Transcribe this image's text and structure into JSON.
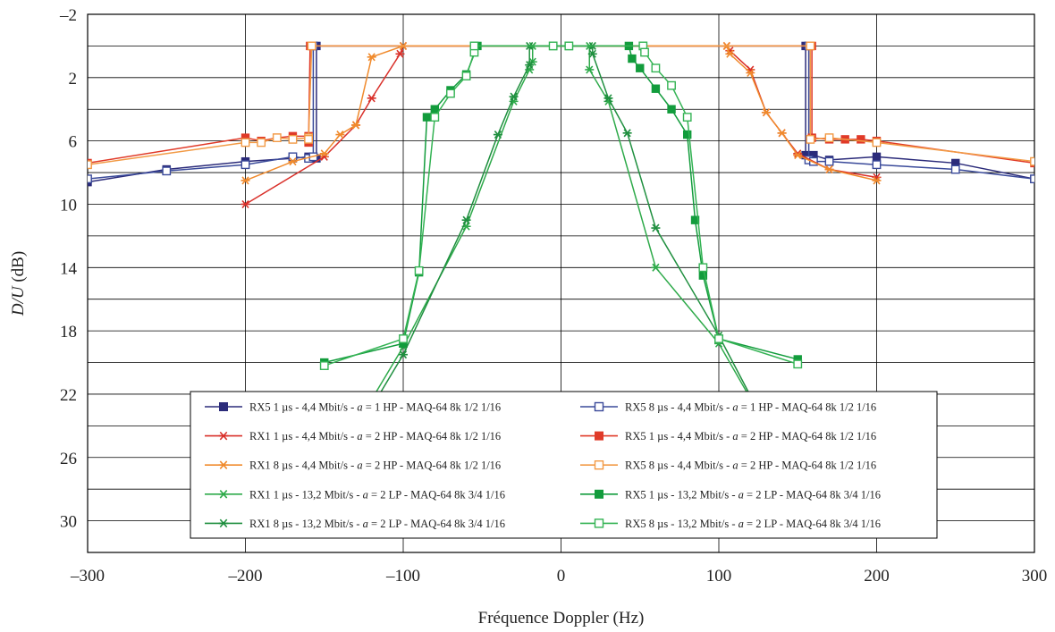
{
  "chart_data": {
    "type": "line",
    "title": "",
    "xlabel": "Fréquence Doppler (Hz)",
    "ylabel_parts": [
      {
        "text": "D/U",
        "italic": true
      },
      {
        "text": " (dB)",
        "italic": false
      }
    ],
    "xlim": [
      -300,
      300
    ],
    "ylim": [
      -2,
      32
    ],
    "y_inverted": true,
    "x_ticks": [
      -300,
      -200,
      -100,
      0,
      100,
      200,
      300
    ],
    "x_tick_labels": [
      "–300",
      "–200",
      "–100",
      "0",
      "100",
      "200",
      "300"
    ],
    "y_ticks": [
      -2,
      2,
      6,
      10,
      14,
      18,
      22,
      26,
      30
    ],
    "y_tick_labels": [
      "–2",
      "2",
      "6",
      "10",
      "14",
      "18",
      "22",
      "26",
      "30"
    ],
    "grid": true,
    "legend_position": "bottom-center",
    "series": [
      {
        "name": "RX5 1 µs - 4,4 Mbit/s - a = 1 HP - MAQ-64 8k 1/2 1/16",
        "legend_parts": [
          {
            "t": "RX5 1 µs - 4,4 Mbit/s - "
          },
          {
            "t": "a",
            "i": true
          },
          {
            "t": " = 1 HP - MAQ-64 8k 1/2 1/16"
          }
        ],
        "color": "#2b2b7a",
        "marker": "square-filled",
        "points": [
          [
            -300,
            8.6
          ],
          [
            -250,
            7.8
          ],
          [
            -200,
            7.3
          ],
          [
            -170,
            7.1
          ],
          [
            -160,
            7.0
          ],
          [
            -155,
            7.1
          ],
          [
            -155,
            0
          ],
          [
            155,
            0
          ],
          [
            155,
            6.9
          ],
          [
            160,
            6.9
          ],
          [
            170,
            7.2
          ],
          [
            200,
            7.0
          ],
          [
            250,
            7.4
          ],
          [
            300,
            8.4
          ]
        ]
      },
      {
        "name": "RX5 8 µs - 4,4 Mbit/s - a = 1 HP - MAQ-64 8k 1/2 1/16",
        "legend_parts": [
          {
            "t": "RX5 8 µs - 4,4 Mbit/s - "
          },
          {
            "t": "a",
            "i": true
          },
          {
            "t": " = 1 HP - MAQ-64 8k 1/2 1/16"
          }
        ],
        "color": "#3a4a9a",
        "marker": "square-open",
        "points": [
          [
            -300,
            8.4
          ],
          [
            -250,
            7.9
          ],
          [
            -200,
            7.5
          ],
          [
            -170,
            7.0
          ],
          [
            -160,
            7.1
          ],
          [
            -157,
            7.0
          ],
          [
            -157,
            0
          ],
          [
            157,
            0
          ],
          [
            157,
            7.2
          ],
          [
            160,
            7.3
          ],
          [
            170,
            7.3
          ],
          [
            200,
            7.5
          ],
          [
            250,
            7.8
          ],
          [
            300,
            8.4
          ]
        ]
      },
      {
        "name": "RX1 1 µs - 4,4 Mbit/s - a = 2 HP - MAQ-64 8k 1/2 1/16",
        "legend_parts": [
          {
            "t": "RX1 1 µs - 4,4 Mbit/s - "
          },
          {
            "t": "a",
            "i": true
          },
          {
            "t": " = 2 HP - MAQ-64 8k 1/2 1/16"
          }
        ],
        "color": "#d9302a",
        "marker": "star",
        "points": [
          [
            -200,
            10.0
          ],
          [
            -150,
            7.0
          ],
          [
            -130,
            5.0
          ],
          [
            -120,
            3.3
          ],
          [
            -102,
            0.5
          ],
          [
            -100,
            0
          ],
          [
            105,
            0
          ],
          [
            107,
            0.3
          ],
          [
            120,
            1.5
          ],
          [
            130,
            4.2
          ],
          [
            140,
            5.5
          ],
          [
            150,
            6.8
          ],
          [
            170,
            7.8
          ],
          [
            200,
            8.3
          ]
        ]
      },
      {
        "name": "RX5 1 µs - 4,4 Mbit/s - a = 2 HP - MAQ-64 8k 1/2 1/16",
        "legend_parts": [
          {
            "t": "RX5 1 µs - 4,4 Mbit/s - "
          },
          {
            "t": "a",
            "i": true
          },
          {
            "t": " = 2 HP - MAQ-64 8k 1/2 1/16"
          }
        ],
        "color": "#e03a28",
        "marker": "square-filled",
        "points": [
          [
            -300,
            7.4
          ],
          [
            -200,
            5.8
          ],
          [
            -190,
            6.0
          ],
          [
            -180,
            5.8
          ],
          [
            -170,
            5.7
          ],
          [
            -160,
            5.7
          ],
          [
            -160,
            6.1
          ],
          [
            -159,
            0
          ],
          [
            159,
            0
          ],
          [
            159,
            5.8
          ],
          [
            170,
            5.9
          ],
          [
            180,
            5.9
          ],
          [
            190,
            5.9
          ],
          [
            200,
            6.0
          ],
          [
            300,
            7.4
          ]
        ]
      },
      {
        "name": "RX1 8 µs - 4,4 Mbit/s - a = 2 HP - MAQ-64 8k 1/2 1/16",
        "legend_parts": [
          {
            "t": "RX1 8 µs - 4,4 Mbit/s - "
          },
          {
            "t": "a",
            "i": true
          },
          {
            "t": " = 2 HP - MAQ-64 8k 1/2 1/16"
          }
        ],
        "color": "#f08a2c",
        "marker": "star",
        "points": [
          [
            -200,
            8.5
          ],
          [
            -170,
            7.3
          ],
          [
            -150,
            6.8
          ],
          [
            -140,
            5.6
          ],
          [
            -130,
            5.0
          ],
          [
            -120,
            0.7
          ],
          [
            -100,
            0
          ],
          [
            105,
            0
          ],
          [
            107,
            0.5
          ],
          [
            120,
            1.7
          ],
          [
            130,
            4.2
          ],
          [
            140,
            5.5
          ],
          [
            150,
            6.9
          ],
          [
            170,
            7.8
          ],
          [
            200,
            8.5
          ]
        ]
      },
      {
        "name": "RX5 8 µs - 4,4 Mbit/s - a = 2 HP - MAQ-64 8k 1/2 1/16",
        "legend_parts": [
          {
            "t": "RX5 8 µs - 4,4 Mbit/s - "
          },
          {
            "t": "a",
            "i": true
          },
          {
            "t": " = 2 HP - MAQ-64 8k 1/2 1/16"
          }
        ],
        "color": "#f29a45",
        "marker": "square-open",
        "points": [
          [
            -300,
            7.5
          ],
          [
            -200,
            6.1
          ],
          [
            -190,
            6.1
          ],
          [
            -180,
            5.8
          ],
          [
            -170,
            5.9
          ],
          [
            -160,
            5.8
          ],
          [
            -160,
            5.9
          ],
          [
            -158,
            0
          ],
          [
            158,
            0
          ],
          [
            158,
            5.9
          ],
          [
            170,
            5.8
          ],
          [
            200,
            6.1
          ],
          [
            300,
            7.3
          ]
        ]
      },
      {
        "name": "RX1 1 µs - 13,2 Mbit/s - a = 2 LP - MAQ-64 8k 3/4 1/16",
        "legend_parts": [
          {
            "t": "RX1 1 µs - 13,2 Mbit/s - "
          },
          {
            "t": "a",
            "i": true
          },
          {
            "t": " = 2 LP - MAQ-64 8k 3/4 1/16"
          }
        ],
        "color": "#2eaa4a",
        "marker": "star",
        "points": [
          [
            -130,
            24.0
          ],
          [
            -100,
            19.0
          ],
          [
            -60,
            11.4
          ],
          [
            -30,
            3.5
          ],
          [
            -20,
            1.5
          ],
          [
            -18,
            1.0
          ],
          [
            -18,
            0
          ],
          [
            18,
            0
          ],
          [
            18,
            1.5
          ],
          [
            30,
            3.5
          ],
          [
            60,
            14.0
          ],
          [
            100,
            18.8
          ],
          [
            130,
            24.0
          ]
        ]
      },
      {
        "name": "RX5 1 µs - 13,2 Mbit/s - a = 2 LP - MAQ-64 8k 3/4 1/16",
        "legend_parts": [
          {
            "t": "RX5 1 µs - 13,2 Mbit/s - "
          },
          {
            "t": "a",
            "i": true
          },
          {
            "t": " = 2 LP - MAQ-64 8k 3/4 1/16"
          }
        ],
        "color": "#129c3c",
        "marker": "square-filled",
        "points": [
          [
            -150,
            20.0
          ],
          [
            -100,
            18.8
          ],
          [
            -90,
            14.3
          ],
          [
            -85,
            4.5
          ],
          [
            -80,
            4.0
          ],
          [
            -70,
            2.8
          ],
          [
            -60,
            1.8
          ],
          [
            -53,
            0
          ],
          [
            -5,
            0
          ],
          [
            5,
            0
          ],
          [
            43,
            0
          ],
          [
            45,
            0.8
          ],
          [
            50,
            1.4
          ],
          [
            60,
            2.7
          ],
          [
            70,
            4.0
          ],
          [
            80,
            5.6
          ],
          [
            85,
            11.0
          ],
          [
            90,
            14.5
          ],
          [
            100,
            18.5
          ],
          [
            150,
            19.8
          ]
        ]
      },
      {
        "name": "RX1 8 µs - 13,2 Mbit/s - a = 2 LP - MAQ-64 8k 3/4 1/16",
        "legend_parts": [
          {
            "t": "RX1 8 µs - 13,2 Mbit/s - "
          },
          {
            "t": "a",
            "i": true
          },
          {
            "t": " = 2 LP - MAQ-64 8k 3/4 1/16"
          }
        ],
        "color": "#1f8f3f",
        "marker": "star",
        "points": [
          [
            -130,
            24.5
          ],
          [
            -100,
            19.5
          ],
          [
            -60,
            11.0
          ],
          [
            -40,
            5.6
          ],
          [
            -30,
            3.2
          ],
          [
            -20,
            1.2
          ],
          [
            -20,
            0
          ],
          [
            20,
            0
          ],
          [
            20,
            0.5
          ],
          [
            30,
            3.3
          ],
          [
            42,
            5.5
          ],
          [
            60,
            11.5
          ],
          [
            100,
            18.3
          ],
          [
            130,
            24.0
          ]
        ]
      },
      {
        "name": "RX5 8 µs - 13,2 Mbit/s - a = 2 LP - MAQ-64 8k 3/4 1/16",
        "legend_parts": [
          {
            "t": "RX5 8 µs - 13,2 Mbit/s - "
          },
          {
            "t": "a",
            "i": true
          },
          {
            "t": " = 2 LP - MAQ-64 8k 3/4 1/16"
          }
        ],
        "color": "#34b354",
        "marker": "square-open",
        "points": [
          [
            -150,
            20.2
          ],
          [
            -100,
            18.5
          ],
          [
            -90,
            14.2
          ],
          [
            -80,
            4.5
          ],
          [
            -70,
            3.0
          ],
          [
            -60,
            1.9
          ],
          [
            -55,
            0.4
          ],
          [
            -55,
            0
          ],
          [
            -5,
            0
          ],
          [
            5,
            0
          ],
          [
            52,
            0
          ],
          [
            53,
            0.4
          ],
          [
            60,
            1.4
          ],
          [
            70,
            2.5
          ],
          [
            80,
            4.5
          ],
          [
            90,
            14.0
          ],
          [
            100,
            18.5
          ],
          [
            150,
            20.1
          ]
        ]
      }
    ]
  }
}
